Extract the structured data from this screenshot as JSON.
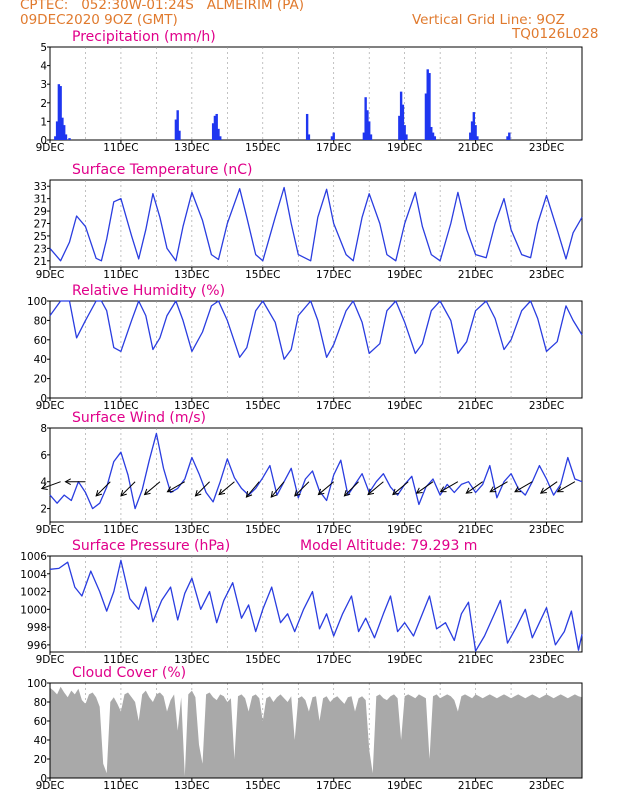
{
  "header": {
    "line1": "CPTEC:   052:30W-01:24S   ALMEIRIM (PA)",
    "line2": "09DEC2020 9OZ (GMT)",
    "grid_note": "Vertical Grid Line: 9OZ",
    "code": "TQ0126L028"
  },
  "colors": {
    "header": "#e07a2e",
    "title": "#e0008a",
    "series": "#2a3de0",
    "bars": "#1f36f0",
    "cloud": "#a9a9a9",
    "grid": "#999999"
  },
  "chart_data": [
    {
      "type": "bar",
      "title": "Precipitation (mm/h)",
      "ylim": [
        0,
        5
      ],
      "yticks": [
        0,
        1,
        2,
        3,
        4,
        5
      ],
      "xlim": [
        9,
        24
      ],
      "xticks": [
        "9DEC",
        "11DEC",
        "13DEC",
        "15DEC",
        "17DEC",
        "19DEC",
        "21DEC",
        "23DEC"
      ],
      "x": [
        9.15,
        9.2,
        9.25,
        9.3,
        9.35,
        9.4,
        9.45,
        9.55,
        12.55,
        12.6,
        12.65,
        13.6,
        13.65,
        13.7,
        13.75,
        13.8,
        16.25,
        16.3,
        16.95,
        17.0,
        17.85,
        17.9,
        17.95,
        18.0,
        18.05,
        18.85,
        18.9,
        18.95,
        19.0,
        19.05,
        19.6,
        19.65,
        19.7,
        19.75,
        19.8,
        19.85,
        20.85,
        20.9,
        20.95,
        21.0,
        21.05,
        21.9,
        21.95
      ],
      "values": [
        0.2,
        1.0,
        3.0,
        2.9,
        1.2,
        0.8,
        0.3,
        0.1,
        1.1,
        1.6,
        0.5,
        0.9,
        1.3,
        1.4,
        0.6,
        0.2,
        1.4,
        0.3,
        0.2,
        0.4,
        0.4,
        2.3,
        1.6,
        1.0,
        0.3,
        1.3,
        2.6,
        1.9,
        0.8,
        0.3,
        2.5,
        3.8,
        3.6,
        0.7,
        0.4,
        0.2,
        0.4,
        1.0,
        1.5,
        0.8,
        0.2,
        0.2,
        0.4
      ]
    },
    {
      "type": "line",
      "title": "Surface Temperature (nC)",
      "ylim": [
        20,
        34
      ],
      "yticks": [
        21,
        23,
        25,
        27,
        29,
        31,
        33
      ],
      "xlim": [
        9,
        24
      ],
      "xticks": [
        "9DEC",
        "11DEC",
        "13DEC",
        "15DEC",
        "17DEC",
        "19DEC",
        "21DEC",
        "23DEC"
      ],
      "x": [
        9.0,
        9.3,
        9.55,
        9.75,
        10.0,
        10.3,
        10.45,
        10.6,
        10.8,
        11.0,
        11.3,
        11.5,
        11.7,
        11.9,
        12.1,
        12.3,
        12.55,
        12.75,
        13.0,
        13.3,
        13.55,
        13.75,
        14.0,
        14.35,
        14.55,
        14.8,
        15.0,
        15.35,
        15.6,
        15.8,
        16.0,
        16.35,
        16.55,
        16.8,
        17.0,
        17.35,
        17.55,
        17.8,
        18.0,
        18.3,
        18.5,
        18.75,
        19.0,
        19.3,
        19.5,
        19.75,
        20.0,
        20.3,
        20.5,
        20.75,
        21.0,
        21.3,
        21.55,
        21.8,
        22.0,
        22.3,
        22.55,
        22.75,
        23.0,
        23.3,
        23.55,
        23.75,
        24.0
      ],
      "values": [
        23.0,
        21.0,
        24.0,
        28.2,
        26.5,
        21.4,
        21.0,
        24.5,
        30.5,
        31.0,
        25.0,
        21.3,
        26.0,
        31.8,
        28.0,
        23.0,
        21.0,
        26.5,
        32.0,
        27.5,
        22.0,
        21.2,
        27.0,
        32.6,
        28.0,
        22.0,
        21.0,
        28.0,
        32.8,
        27.0,
        22.0,
        21.0,
        28.0,
        32.5,
        27.0,
        22.0,
        21.0,
        28.0,
        31.8,
        27.0,
        22.0,
        21.0,
        27.0,
        32.0,
        26.5,
        22.0,
        21.0,
        27.0,
        32.0,
        26.0,
        22.0,
        21.5,
        27.0,
        31.0,
        26.0,
        22.0,
        21.5,
        27.0,
        31.5,
        26.0,
        21.3,
        25.5,
        28.0
      ]
    },
    {
      "type": "line",
      "title": "Relative Humidity (%)",
      "ylim": [
        0,
        100
      ],
      "yticks": [
        0,
        20,
        40,
        60,
        80,
        100
      ],
      "xlim": [
        9,
        24
      ],
      "xticks": [
        "9DEC",
        "11DEC",
        "13DEC",
        "15DEC",
        "17DEC",
        "19DEC",
        "21DEC",
        "23DEC"
      ],
      "x": [
        9.0,
        9.3,
        9.55,
        9.75,
        10.0,
        10.3,
        10.45,
        10.6,
        10.8,
        11.0,
        11.3,
        11.5,
        11.7,
        11.9,
        12.1,
        12.3,
        12.55,
        12.75,
        13.0,
        13.3,
        13.55,
        13.75,
        14.0,
        14.35,
        14.55,
        14.8,
        15.0,
        15.35,
        15.6,
        15.8,
        16.0,
        16.35,
        16.55,
        16.8,
        17.0,
        17.35,
        17.55,
        17.8,
        18.0,
        18.3,
        18.5,
        18.75,
        19.0,
        19.3,
        19.5,
        19.75,
        20.0,
        20.3,
        20.5,
        20.75,
        21.0,
        21.3,
        21.55,
        21.8,
        22.0,
        22.3,
        22.55,
        22.75,
        23.0,
        23.3,
        23.55,
        23.75,
        24.0
      ],
      "values": [
        85,
        100,
        100,
        62,
        80,
        100,
        100,
        90,
        52,
        48,
        80,
        100,
        85,
        50,
        62,
        85,
        100,
        80,
        48,
        68,
        95,
        100,
        80,
        42,
        52,
        90,
        100,
        78,
        40,
        50,
        85,
        100,
        80,
        42,
        55,
        90,
        100,
        78,
        46,
        56,
        90,
        100,
        78,
        46,
        56,
        90,
        100,
        80,
        46,
        58,
        90,
        100,
        82,
        50,
        60,
        90,
        100,
        82,
        48,
        58,
        95,
        80,
        65
      ]
    },
    {
      "type": "line",
      "title": "Surface Wind (m/s)",
      "ylim": [
        1,
        8
      ],
      "yticks": [
        2,
        4,
        6,
        8
      ],
      "xlim": [
        9,
        24
      ],
      "xticks": [
        "9DEC",
        "11DEC",
        "13DEC",
        "15DEC",
        "17DEC",
        "19DEC",
        "21DEC",
        "23DEC"
      ],
      "x": [
        9.0,
        9.2,
        9.4,
        9.6,
        9.8,
        10.0,
        10.2,
        10.4,
        10.6,
        10.8,
        11.0,
        11.2,
        11.4,
        11.6,
        11.8,
        12.0,
        12.2,
        12.4,
        12.6,
        12.8,
        13.0,
        13.2,
        13.4,
        13.6,
        13.8,
        14.0,
        14.2,
        14.4,
        14.6,
        14.8,
        15.0,
        15.2,
        15.4,
        15.6,
        15.8,
        16.0,
        16.2,
        16.4,
        16.6,
        16.8,
        17.0,
        17.2,
        17.4,
        17.6,
        17.8,
        18.0,
        18.2,
        18.4,
        18.6,
        18.8,
        19.0,
        19.2,
        19.4,
        19.6,
        19.8,
        20.0,
        20.2,
        20.4,
        20.6,
        20.8,
        21.0,
        21.2,
        21.4,
        21.6,
        21.8,
        22.0,
        22.2,
        22.4,
        22.6,
        22.8,
        23.0,
        23.2,
        23.4,
        23.6,
        23.8,
        24.0
      ],
      "values": [
        3.0,
        2.4,
        3.0,
        2.6,
        4.0,
        3.2,
        2.0,
        2.4,
        3.6,
        5.5,
        6.2,
        4.5,
        2.0,
        3.4,
        5.6,
        7.6,
        5.0,
        3.2,
        3.5,
        4.2,
        5.8,
        4.6,
        3.2,
        2.5,
        4.0,
        5.7,
        4.3,
        3.5,
        3.0,
        3.5,
        4.3,
        5.2,
        3.0,
        4.0,
        5.0,
        2.8,
        4.2,
        4.8,
        3.3,
        2.6,
        4.5,
        5.6,
        3.0,
        3.8,
        4.6,
        3.2,
        4.0,
        4.6,
        3.6,
        3.0,
        3.8,
        4.4,
        2.3,
        3.6,
        4.2,
        3.0,
        3.8,
        3.2,
        3.8,
        4.0,
        3.2,
        3.8,
        5.2,
        2.8,
        4.0,
        4.6,
        3.5,
        3.0,
        4.0,
        5.2,
        4.2,
        3.0,
        3.8,
        5.8,
        4.2,
        4.0
      ],
      "arrow_x": [
        9.3,
        10.0,
        10.7,
        11.4,
        12.1,
        12.8,
        13.5,
        14.2,
        14.9,
        15.6,
        16.3,
        17.0,
        17.7,
        18.4,
        19.1,
        19.8,
        20.5,
        21.2,
        21.9,
        22.6,
        23.3,
        23.8
      ],
      "arrow_dir_deg": [
        20,
        0,
        45,
        45,
        40,
        30,
        45,
        40,
        50,
        50,
        45,
        40,
        45,
        40,
        40,
        35,
        30,
        35,
        30,
        30,
        35,
        30
      ]
    },
    {
      "type": "line",
      "title": "Surface Pressure (hPa)",
      "annotation": "Model Altitude: 79.293 m",
      "ylim": [
        995.2,
        1006
      ],
      "yticks": [
        996,
        998,
        1000,
        1002,
        1004,
        1006
      ],
      "xlim": [
        9,
        24
      ],
      "xticks": [
        "9DEC",
        "11DEC",
        "13DEC",
        "15DEC",
        "17DEC",
        "19DEC",
        "21DEC",
        "23DEC"
      ],
      "x": [
        9.0,
        9.25,
        9.5,
        9.7,
        9.9,
        10.15,
        10.4,
        10.6,
        10.8,
        11.0,
        11.25,
        11.5,
        11.7,
        11.9,
        12.15,
        12.4,
        12.6,
        12.8,
        13.0,
        13.25,
        13.5,
        13.7,
        13.9,
        14.15,
        14.4,
        14.6,
        14.8,
        15.0,
        15.25,
        15.5,
        15.7,
        15.9,
        16.15,
        16.4,
        16.6,
        16.8,
        17.0,
        17.25,
        17.5,
        17.7,
        17.9,
        18.15,
        18.4,
        18.6,
        18.8,
        19.0,
        19.25,
        19.5,
        19.7,
        19.9,
        20.15,
        20.4,
        20.6,
        20.8,
        21.0,
        21.25,
        21.5,
        21.7,
        21.9,
        22.15,
        22.4,
        22.6,
        22.8,
        23.0,
        23.25,
        23.5,
        23.7,
        23.9,
        24.0
      ],
      "values": [
        1004.5,
        1004.6,
        1005.3,
        1002.5,
        1001.5,
        1004.3,
        1002.0,
        999.8,
        1002.0,
        1005.5,
        1001.2,
        1000.0,
        1002.5,
        998.6,
        1001.0,
        1002.5,
        998.8,
        1001.8,
        1003.5,
        1000.0,
        1002.0,
        998.5,
        1001.0,
        1003.0,
        999.0,
        1000.5,
        997.5,
        1000.0,
        1002.5,
        998.5,
        999.5,
        997.5,
        1000.0,
        1002.0,
        997.8,
        999.5,
        997.0,
        999.5,
        1001.5,
        997.5,
        999.0,
        996.8,
        999.5,
        1001.5,
        997.5,
        998.5,
        997.0,
        999.5,
        1001.5,
        997.8,
        998.5,
        996.5,
        999.5,
        1000.8,
        995.3,
        997.0,
        999.2,
        1001.0,
        996.2,
        998.0,
        1000.0,
        996.8,
        998.5,
        1000.2,
        996.0,
        997.5,
        999.8,
        995.4,
        997.2
      ]
    },
    {
      "type": "area",
      "title": "Cloud Cover (%)",
      "ylim": [
        0,
        100
      ],
      "yticks": [
        0,
        20,
        40,
        60,
        80,
        100
      ],
      "xlim": [
        9,
        24
      ],
      "xticks": [
        "9DEC",
        "11DEC",
        "13DEC",
        "15DEC",
        "17DEC",
        "19DEC",
        "21DEC",
        "23DEC"
      ],
      "x": [
        9.0,
        9.1,
        9.2,
        9.3,
        9.4,
        9.5,
        9.6,
        9.7,
        9.8,
        9.9,
        10.0,
        10.1,
        10.2,
        10.3,
        10.4,
        10.5,
        10.6,
        10.7,
        10.8,
        10.9,
        11.0,
        11.1,
        11.2,
        11.3,
        11.4,
        11.5,
        11.6,
        11.7,
        11.8,
        11.9,
        12.0,
        12.1,
        12.2,
        12.3,
        12.4,
        12.5,
        12.6,
        12.7,
        12.8,
        12.9,
        13.0,
        13.1,
        13.2,
        13.3,
        13.4,
        13.5,
        13.6,
        13.7,
        13.8,
        13.9,
        14.0,
        14.1,
        14.2,
        14.3,
        14.4,
        14.5,
        14.6,
        14.7,
        14.8,
        14.9,
        15.0,
        15.1,
        15.2,
        15.3,
        15.4,
        15.5,
        15.6,
        15.7,
        15.8,
        15.9,
        16.0,
        16.1,
        16.2,
        16.3,
        16.4,
        16.5,
        16.6,
        16.7,
        16.8,
        16.9,
        17.0,
        17.1,
        17.2,
        17.3,
        17.4,
        17.5,
        17.6,
        17.7,
        17.8,
        17.9,
        18.0,
        18.1,
        18.2,
        18.3,
        18.4,
        18.5,
        18.6,
        18.7,
        18.8,
        18.9,
        19.0,
        19.1,
        19.2,
        19.3,
        19.4,
        19.5,
        19.6,
        19.7,
        19.8,
        19.9,
        20.0,
        20.1,
        20.2,
        20.3,
        20.4,
        20.5,
        20.6,
        20.7,
        20.8,
        20.9,
        21.0,
        21.1,
        21.2,
        21.3,
        21.4,
        21.5,
        21.6,
        21.7,
        21.8,
        21.9,
        22.0,
        22.1,
        22.2,
        22.3,
        22.4,
        22.5,
        22.6,
        22.7,
        22.8,
        22.9,
        23.0,
        23.1,
        23.2,
        23.3,
        23.4,
        23.5,
        23.6,
        23.7,
        23.8,
        23.9,
        24.0
      ],
      "values": [
        95,
        92,
        88,
        96,
        90,
        85,
        92,
        88,
        94,
        82,
        78,
        88,
        90,
        85,
        75,
        15,
        5,
        80,
        85,
        78,
        70,
        88,
        90,
        85,
        80,
        60,
        88,
        92,
        85,
        80,
        88,
        90,
        86,
        70,
        82,
        88,
        50,
        85,
        2,
        88,
        92,
        85,
        35,
        15,
        88,
        90,
        85,
        82,
        88,
        86,
        80,
        84,
        20,
        86,
        88,
        84,
        70,
        86,
        88,
        84,
        60,
        84,
        86,
        80,
        85,
        88,
        84,
        80,
        86,
        40,
        84,
        86,
        82,
        70,
        85,
        86,
        60,
        84,
        86,
        80,
        84,
        86,
        82,
        78,
        85,
        86,
        70,
        84,
        86,
        82,
        30,
        5,
        86,
        88,
        84,
        82,
        86,
        88,
        84,
        40,
        86,
        88,
        86,
        84,
        88,
        86,
        84,
        20,
        86,
        88,
        84,
        86,
        88,
        86,
        82,
        70,
        86,
        88,
        86,
        84,
        88,
        86,
        84,
        86,
        88,
        86,
        84,
        86,
        88,
        86,
        84,
        86,
        88,
        86,
        84,
        86,
        88,
        86,
        84,
        86,
        88,
        86,
        84,
        86,
        88,
        86,
        84,
        86,
        88,
        86,
        85
      ]
    }
  ]
}
